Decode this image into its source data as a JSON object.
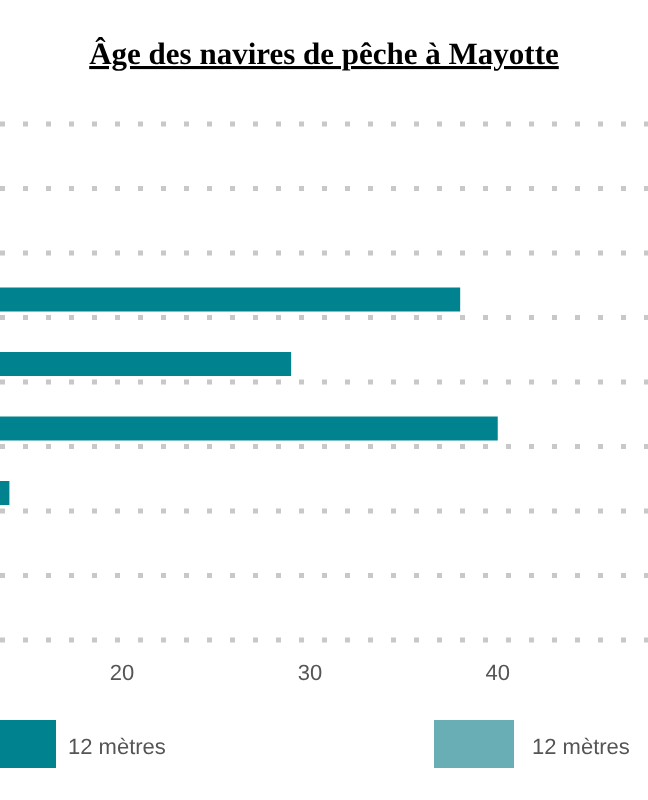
{
  "chart_data": {
    "type": "bar",
    "orientation": "horizontal",
    "title": "Âge des navires de pêche à Mayotte",
    "categories": [
      null,
      null,
      null,
      null
    ],
    "series": [
      {
        "name": "12 mètres",
        "color": "#00838f",
        "values": [
          38,
          29,
          40,
          14
        ]
      }
    ],
    "annotations": [
      "12 mètres"
    ],
    "xlim": [
      13.5,
      48
    ],
    "xticks": [
      20,
      30,
      40
    ],
    "grid": "y",
    "legend": "bottom"
  }
}
